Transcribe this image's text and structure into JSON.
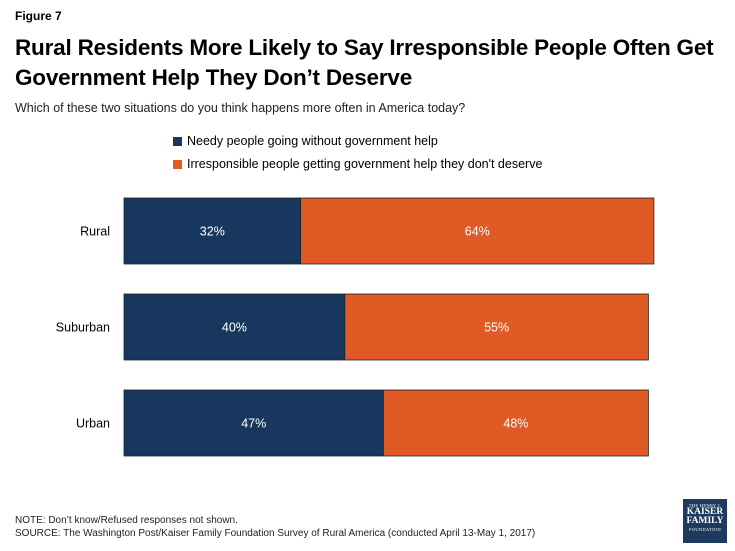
{
  "figure_label": "Figure 7",
  "title": "Rural Residents More Likely to Say Irresponsible People Often Get Government Help They Don’t Deserve",
  "subtitle": "Which of these two situations do you think happens more often in America today?",
  "colors": {
    "needy": "#17375e",
    "irresponsible": "#e05a25"
  },
  "chart_data": {
    "type": "bar",
    "orientation": "horizontal",
    "stacked": true,
    "categories": [
      "Rural",
      "Suburban",
      "Urban"
    ],
    "series": [
      {
        "name": "Needy people going without government help",
        "values": [
          32,
          40,
          47
        ]
      },
      {
        "name": "Irresponsible people getting government help they don't deserve",
        "values": [
          64,
          55,
          48
        ]
      }
    ],
    "data_labels": [
      [
        "32%",
        "64%"
      ],
      [
        "40%",
        "55%"
      ],
      [
        "47%",
        "48%"
      ]
    ],
    "xlim": [
      0,
      100
    ],
    "grid": false,
    "legend_position": "top"
  },
  "notes": {
    "note": "NOTE: Don’t know/Refused responses not shown.",
    "source": "SOURCE: The Washington Post/Kaiser Family Foundation Survey of Rural America (conducted April 13-May 1, 2017)"
  },
  "logo": {
    "line1": "THE HENRY J.",
    "line2": "KAISER",
    "line3": "FAMILY",
    "line4": "FOUNDATION"
  }
}
